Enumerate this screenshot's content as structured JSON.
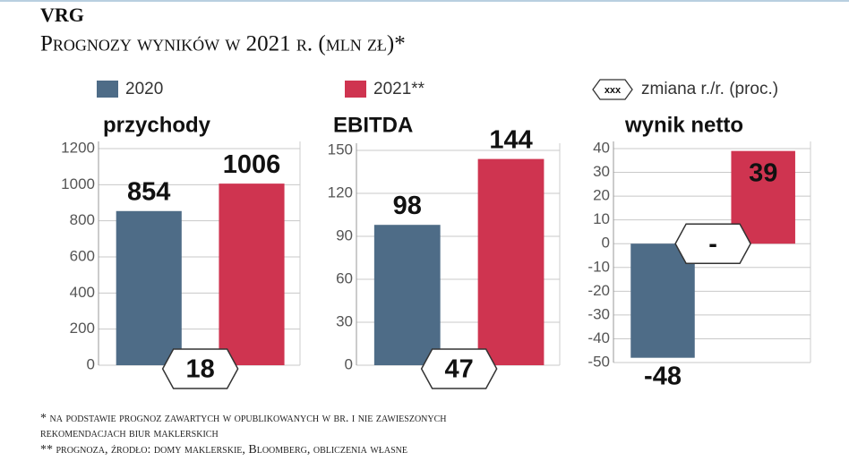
{
  "header": {
    "title": "VRG",
    "subtitle": "Prognozy wyników w 2021 r. (mln zł)*"
  },
  "legend": {
    "series": [
      {
        "name": "2020",
        "color": "#4e6c87"
      },
      {
        "name": "2021**",
        "color": "#cf3450"
      }
    ],
    "change_symbol": "xxx",
    "change_label": "zmiana r./r. (proc.)"
  },
  "chart_data": [
    {
      "type": "bar",
      "title": "przychody",
      "series": [
        {
          "values": [
            854
          ]
        },
        {
          "values": [
            1006
          ]
        }
      ],
      "change": 18,
      "ylim": [
        0,
        1200
      ],
      "yticks": [
        0,
        200,
        400,
        600,
        800,
        1000,
        1200
      ],
      "grid": true
    },
    {
      "type": "bar",
      "title": "EBITDA",
      "series": [
        {
          "values": [
            98
          ]
        },
        {
          "values": [
            144
          ]
        }
      ],
      "change": 47,
      "ylim": [
        0,
        150
      ],
      "yticks": [
        0,
        30,
        60,
        90,
        120,
        150
      ],
      "grid": true
    },
    {
      "type": "bar",
      "title": "wynik netto",
      "series": [
        {
          "values": [
            -48
          ]
        },
        {
          "values": [
            39
          ]
        }
      ],
      "change": "-",
      "ylim": [
        -50,
        40
      ],
      "yticks": [
        -50,
        -40,
        -30,
        -20,
        -10,
        0,
        10,
        20,
        30,
        40
      ],
      "grid": true
    }
  ],
  "footnotes": [
    "* na podstawie prognoz zawartych w opublikowanych w br. i nie zawieszonych",
    "rekomendacjach biur maklerskich",
    "** prognoza, źrodło: domy maklerskie, Bloomberg, obliczenia własne"
  ]
}
